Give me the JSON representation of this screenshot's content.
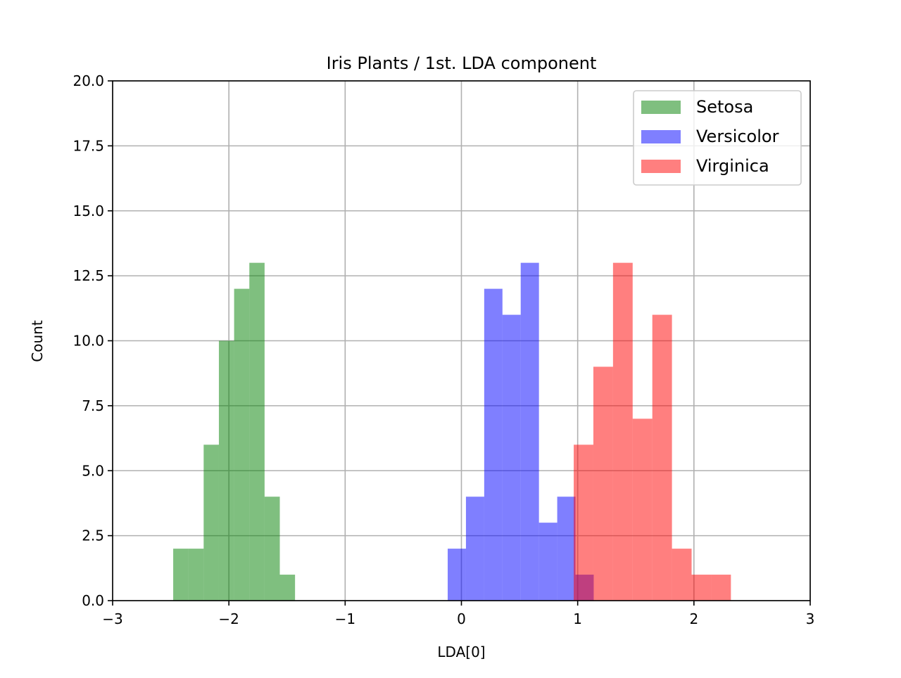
{
  "chart_data": {
    "type": "bar",
    "subtype": "histogram",
    "title": "Iris Plants / 1st. LDA component",
    "xlabel": "LDA[0]",
    "ylabel": "Count",
    "xlim": [
      -3,
      3
    ],
    "ylim": [
      0,
      20
    ],
    "xticks": [
      -3,
      -2,
      -1,
      0,
      1,
      2,
      3
    ],
    "xtick_labels": [
      "−3",
      "−2",
      "−1",
      "0",
      "1",
      "2",
      "3"
    ],
    "yticks": [
      0,
      2.5,
      5,
      7.5,
      10,
      12.5,
      15,
      17.5,
      20
    ],
    "ytick_labels": [
      "0.0",
      "2.5",
      "5.0",
      "7.5",
      "10.0",
      "12.5",
      "15.0",
      "17.5",
      "20.0"
    ],
    "grid": true,
    "legend_position": "top-right",
    "alpha": 0.5,
    "series": [
      {
        "name": "Setosa",
        "color": "#008000",
        "bin_start": -2.479,
        "bin_width": 0.131,
        "counts": [
          2,
          2,
          6,
          10,
          12,
          13,
          4,
          1
        ]
      },
      {
        "name": "Versicolor",
        "color": "#0000ff",
        "bin_start": -0.118,
        "bin_width": 0.157,
        "counts": [
          2,
          4,
          12,
          11,
          13,
          3,
          4,
          1
        ]
      },
      {
        "name": "Virginica",
        "color": "#ff0000",
        "bin_start": 0.966,
        "bin_width": 0.169,
        "counts": [
          6,
          9,
          13,
          7,
          11,
          2,
          1,
          1
        ]
      }
    ]
  }
}
